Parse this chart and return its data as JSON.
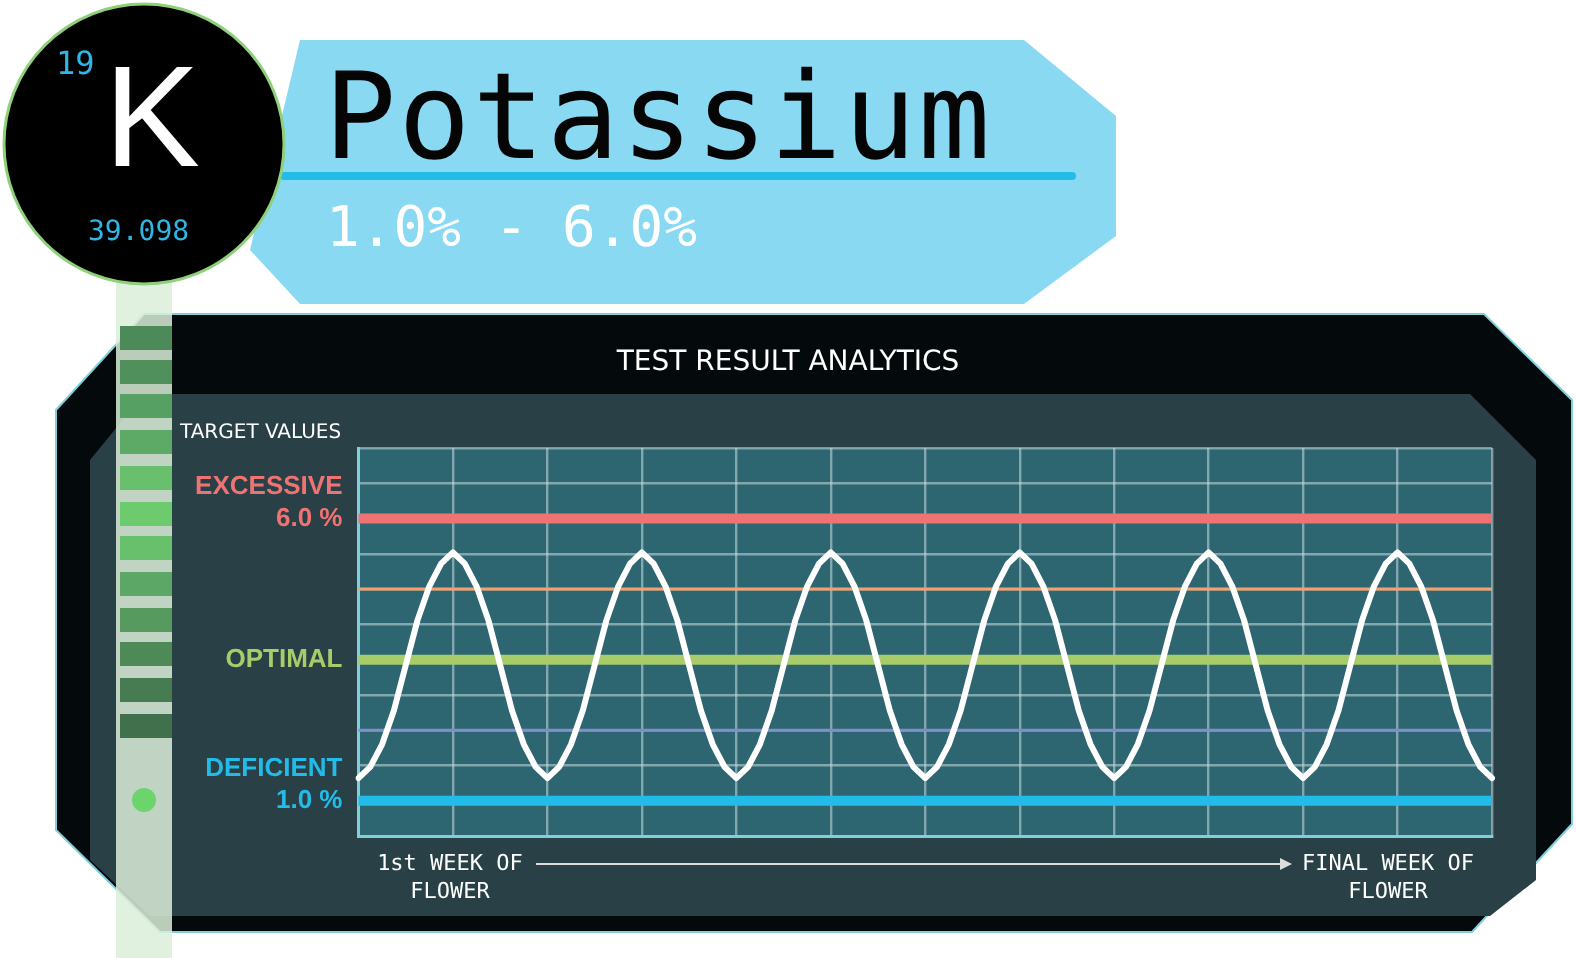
{
  "chart_data": {
    "type": "line",
    "title": "Potassium",
    "subtitle": "1.0% - 6.0%",
    "annotations": [
      "19",
      "K",
      "39.098",
      "TEST RESULT ANALYTICS",
      "TARGET VALUES",
      "1st WEEK OF FLOWER",
      "FINAL WEEK OF FLOWER"
    ],
    "categories": [
      null,
      null,
      null,
      null,
      null,
      null,
      null,
      null,
      null,
      null,
      null,
      null,
      null,
      null,
      null,
      null,
      null,
      null,
      null,
      null,
      null,
      null,
      null,
      null,
      null,
      null,
      null,
      null,
      null,
      null,
      null,
      null,
      null,
      null,
      null,
      null,
      null,
      null,
      null,
      null,
      null,
      null,
      null,
      null,
      null,
      null,
      null,
      null,
      null,
      null,
      null,
      null,
      null,
      null,
      null,
      null,
      null,
      null,
      null,
      null,
      null,
      null,
      null,
      null,
      null,
      null,
      null,
      null,
      null,
      null,
      null,
      null,
      null,
      null,
      null,
      null,
      null,
      null,
      null,
      null,
      null,
      null,
      null,
      null,
      null,
      null,
      null,
      null,
      null,
      null,
      null,
      null,
      null,
      null,
      null,
      null,
      null
    ],
    "series": [
      {
        "color": "#ffffff",
        "values": [
          1.4,
          1.6,
          2.0,
          2.6,
          3.4,
          4.2,
          4.8,
          5.2,
          5.4,
          5.2,
          4.8,
          4.2,
          3.4,
          2.6,
          2.0,
          1.6,
          1.4,
          1.6,
          2.0,
          2.6,
          3.4,
          4.2,
          4.8,
          5.2,
          5.4,
          5.2,
          4.8,
          4.2,
          3.4,
          2.6,
          2.0,
          1.6,
          1.4,
          1.6,
          2.0,
          2.6,
          3.4,
          4.2,
          4.8,
          5.2,
          5.4,
          5.2,
          4.8,
          4.2,
          3.4,
          2.6,
          2.0,
          1.6,
          1.4,
          1.6,
          2.0,
          2.6,
          3.4,
          4.2,
          4.8,
          5.2,
          5.4,
          5.2,
          4.8,
          4.2,
          3.4,
          2.6,
          2.0,
          1.6,
          1.4,
          1.6,
          2.0,
          2.6,
          3.4,
          4.2,
          4.8,
          5.2,
          5.4,
          5.2,
          4.8,
          4.2,
          3.4,
          2.6,
          2.0,
          1.6,
          1.4,
          1.6,
          2.0,
          2.6,
          3.4,
          4.2,
          4.8,
          5.2,
          5.4,
          5.2,
          4.8,
          4.2,
          3.4,
          2.6,
          2.0,
          1.6,
          1.4
        ]
      }
    ],
    "ylim": [
      0.375,
      7.25
    ],
    "yticks": [
      {
        "value": 0.375,
        "label": null
      },
      {
        "value": 1,
        "label": "1.0 %"
      },
      {
        "value": 1.625,
        "label": null
      },
      {
        "value": 2.25,
        "label": null
      },
      {
        "value": 2.875,
        "label": null
      },
      {
        "value": 3.5,
        "label": null
      },
      {
        "value": 4.125,
        "label": null
      },
      {
        "value": 4.75,
        "label": null
      },
      {
        "value": 5.375,
        "label": null
      },
      {
        "value": 6,
        "label": "6.0 %"
      },
      {
        "value": 6.625,
        "label": null
      },
      {
        "value": 7.25,
        "label": null
      }
    ],
    "ref_lines": [
      {
        "axis": "y",
        "value": 6,
        "label": "EXCESSIVE",
        "color": "#f07373"
      },
      {
        "axis": "y",
        "value": 4.75,
        "color": "#f5a06e"
      },
      {
        "axis": "y",
        "value": 3.5,
        "label": "OPTIMAL",
        "color": "#a8cc6a"
      },
      {
        "axis": "y",
        "value": 2.25,
        "color": "#7f8fc8"
      },
      {
        "axis": "y",
        "value": 1,
        "label": "DEFICIENT",
        "color": "#23bce8"
      }
    ],
    "grid": true,
    "legend": false,
    "tick_labels": "y",
    "marker": "none",
    "line_style": "solid"
  }
}
